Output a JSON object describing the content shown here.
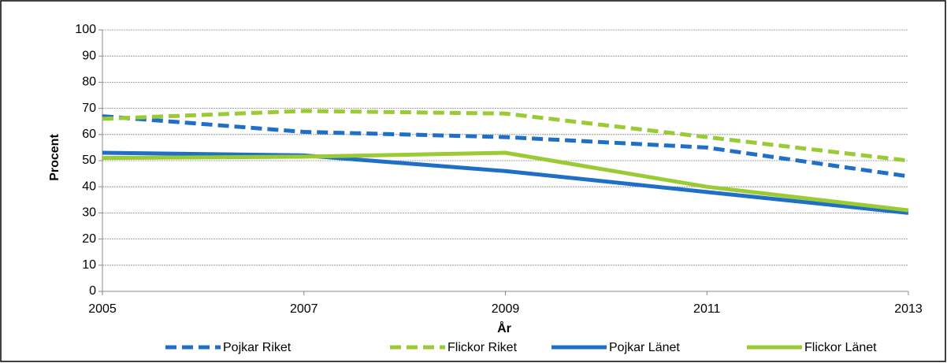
{
  "chart_data": {
    "type": "line",
    "x": [
      2005,
      2007,
      2009,
      2011,
      2013
    ],
    "xlabel": "År",
    "ylabel": "Procent",
    "xlim": [
      2005,
      2013
    ],
    "xticks": [
      2005,
      2007,
      2009,
      2011,
      2013
    ],
    "ylim": [
      0,
      100
    ],
    "yticks": [
      0,
      10,
      20,
      30,
      40,
      50,
      60,
      70,
      80,
      90,
      100
    ],
    "grid": true,
    "legend": "bottom",
    "series": [
      {
        "name": "Pojkar Riket",
        "color": "#1f6fc6",
        "dashed": true,
        "values": [
          67,
          61,
          59,
          55,
          44
        ]
      },
      {
        "name": "Flickor Riket",
        "color": "#9acb34",
        "dashed": true,
        "values": [
          66,
          69,
          68,
          59,
          50
        ]
      },
      {
        "name": "Pojkar Länet",
        "color": "#1f6fc6",
        "dashed": false,
        "values": [
          53,
          52,
          46,
          38,
          30
        ]
      },
      {
        "name": "Flickor Länet",
        "color": "#9acb34",
        "dashed": false,
        "values": [
          51,
          51.5,
          53,
          40,
          31
        ]
      }
    ]
  }
}
